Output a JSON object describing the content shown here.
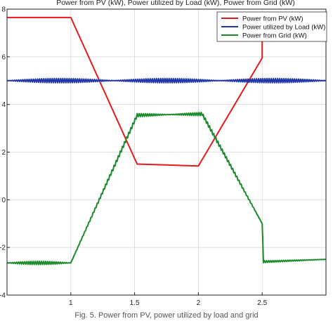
{
  "chart_data": {
    "type": "line",
    "title": "Power from PV (kW), Power utilized by Load (kW), Power from Grid (kW)",
    "xlabel": "",
    "ylabel": "",
    "xlim": [
      0.5,
      3.0
    ],
    "ylim": [
      -4,
      8
    ],
    "x_ticks": [
      1,
      1.5,
      2,
      2.5
    ],
    "x_tick_labels": [
      "1",
      "1.5",
      "2",
      "2.5"
    ],
    "y_ticks": [
      -4,
      -2,
      0,
      2,
      4,
      6,
      8
    ],
    "y_tick_labels": [
      "-4",
      "-2",
      "0",
      "2",
      "4",
      "6",
      "8"
    ],
    "grid": true,
    "legend_position": "top-right",
    "series": [
      {
        "name": "Power from PV (kW)",
        "color": "#e8191c",
        "ripple": 0,
        "points": [
          [
            0.5,
            7.65
          ],
          [
            1.0,
            7.65
          ],
          [
            1.52,
            1.5
          ],
          [
            2.0,
            1.42
          ],
          [
            2.5,
            5.95
          ],
          [
            2.5,
            7.55
          ],
          [
            3.0,
            7.55
          ]
        ]
      },
      {
        "name": "Power utilized by Load (kW)",
        "color": "#1f35a8",
        "ripple": 0.09,
        "points": [
          [
            0.5,
            5.0
          ],
          [
            3.0,
            5.0
          ]
        ]
      },
      {
        "name": "Power from Grid (kW)",
        "color": "#1b8a2a",
        "ripple": 0.07,
        "points": [
          [
            0.5,
            -2.65
          ],
          [
            1.0,
            -2.65
          ],
          [
            1.52,
            3.55
          ],
          [
            2.03,
            3.6
          ],
          [
            2.5,
            -1.0
          ],
          [
            2.51,
            -2.6
          ],
          [
            3.0,
            -2.5
          ]
        ]
      }
    ],
    "caption": "Fig. 5. Power from PV, power utilized by load and grid"
  }
}
